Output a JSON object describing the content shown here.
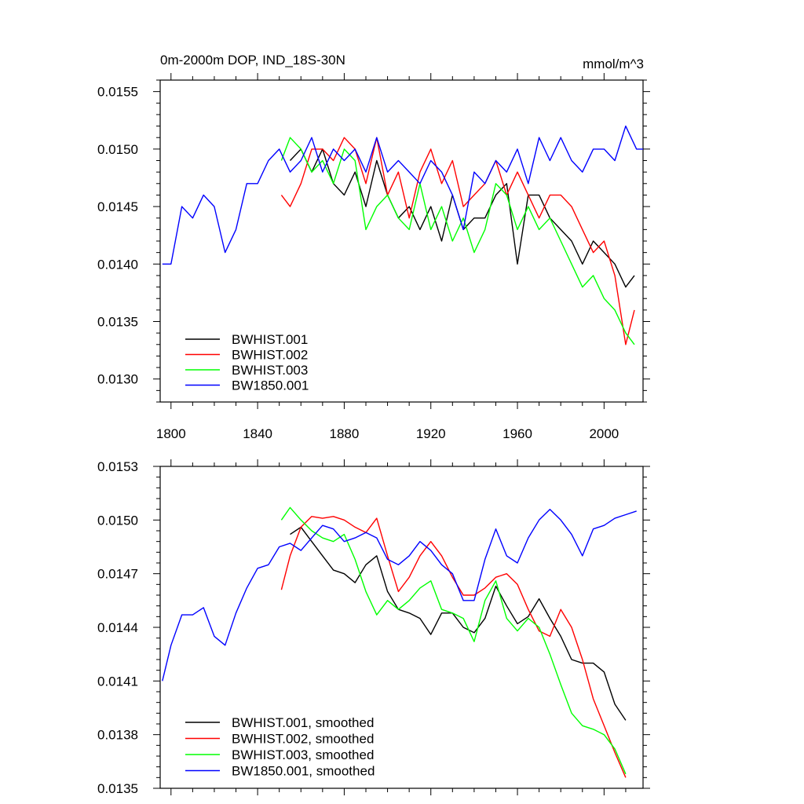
{
  "chart_data": [
    {
      "type": "line",
      "title": "0m-2000m DOP, IND_18S-30N",
      "units": "mmol/m^3",
      "xlim": [
        1795,
        2018
      ],
      "ylim": [
        0.0128,
        0.0156
      ],
      "xticks": [
        1800,
        1840,
        1880,
        1920,
        1960,
        2000
      ],
      "yticks": [
        0.013,
        0.0135,
        0.014,
        0.0145,
        0.015,
        0.0155
      ],
      "ytick_labels": [
        "0.0130",
        "0.0135",
        "0.0140",
        "0.0145",
        "0.0150",
        "0.0155"
      ],
      "legend_position": "bottom-left",
      "series": [
        {
          "name": "BWHIST.001",
          "color": "#000000",
          "x": [
            1855,
            1860,
            1865,
            1870,
            1875,
            1880,
            1885,
            1890,
            1895,
            1900,
            1905,
            1910,
            1915,
            1920,
            1925,
            1930,
            1935,
            1940,
            1945,
            1950,
            1955,
            1960,
            1965,
            1970,
            1975,
            1980,
            1985,
            1990,
            1995,
            2000,
            2005,
            2010,
            2014
          ],
          "y": [
            0.0149,
            0.015,
            0.0148,
            0.015,
            0.0147,
            0.0146,
            0.0148,
            0.0145,
            0.0149,
            0.0146,
            0.0144,
            0.0145,
            0.0143,
            0.0145,
            0.0142,
            0.0146,
            0.0143,
            0.0144,
            0.0144,
            0.0146,
            0.0147,
            0.014,
            0.0146,
            0.0146,
            0.0144,
            0.0143,
            0.0142,
            0.014,
            0.0142,
            0.0141,
            0.014,
            0.0138,
            0.0139
          ]
        },
        {
          "name": "BWHIST.002",
          "color": "#ff0000",
          "x": [
            1851,
            1855,
            1860,
            1865,
            1870,
            1875,
            1880,
            1885,
            1890,
            1895,
            1900,
            1905,
            1910,
            1915,
            1920,
            1925,
            1930,
            1935,
            1940,
            1945,
            1950,
            1955,
            1960,
            1965,
            1970,
            1975,
            1980,
            1985,
            1990,
            1995,
            2000,
            2005,
            2010,
            2014
          ],
          "y": [
            0.0146,
            0.0145,
            0.0147,
            0.015,
            0.015,
            0.0149,
            0.0151,
            0.015,
            0.0147,
            0.0151,
            0.0146,
            0.0148,
            0.0144,
            0.0148,
            0.015,
            0.0147,
            0.0149,
            0.0145,
            0.0146,
            0.0147,
            0.0149,
            0.0146,
            0.0148,
            0.0146,
            0.0144,
            0.0146,
            0.0146,
            0.0145,
            0.0143,
            0.0141,
            0.0142,
            0.0139,
            0.0133,
            0.0136
          ]
        },
        {
          "name": "BWHIST.003",
          "color": "#00ff00",
          "x": [
            1851,
            1855,
            1860,
            1865,
            1870,
            1875,
            1880,
            1885,
            1890,
            1895,
            1900,
            1905,
            1910,
            1915,
            1920,
            1925,
            1930,
            1935,
            1940,
            1945,
            1950,
            1955,
            1960,
            1965,
            1970,
            1975,
            1980,
            1985,
            1990,
            1995,
            2000,
            2005,
            2010,
            2014
          ],
          "y": [
            0.0149,
            0.0151,
            0.015,
            0.0148,
            0.0149,
            0.0147,
            0.015,
            0.0149,
            0.0143,
            0.0145,
            0.0146,
            0.0144,
            0.0143,
            0.0147,
            0.0143,
            0.0145,
            0.0142,
            0.0144,
            0.0141,
            0.0143,
            0.0147,
            0.0146,
            0.0143,
            0.0145,
            0.0143,
            0.0144,
            0.0142,
            0.014,
            0.0138,
            0.0139,
            0.0137,
            0.0136,
            0.0134,
            0.0133
          ]
        },
        {
          "name": "BW1850.001",
          "color": "#0000ff",
          "x": [
            1796,
            1800,
            1805,
            1810,
            1815,
            1820,
            1825,
            1830,
            1835,
            1840,
            1845,
            1850,
            1855,
            1860,
            1865,
            1870,
            1875,
            1880,
            1885,
            1890,
            1895,
            1900,
            1905,
            1910,
            1915,
            1920,
            1925,
            1930,
            1935,
            1940,
            1945,
            1950,
            1955,
            1960,
            1965,
            1970,
            1975,
            1980,
            1985,
            1990,
            1995,
            2000,
            2005,
            2010,
            2015,
            2018
          ],
          "y": [
            0.014,
            0.014,
            0.0145,
            0.0144,
            0.0146,
            0.0145,
            0.0141,
            0.0143,
            0.0147,
            0.0147,
            0.0149,
            0.015,
            0.0148,
            0.0149,
            0.0151,
            0.0148,
            0.015,
            0.0149,
            0.015,
            0.0148,
            0.0151,
            0.0148,
            0.0149,
            0.0148,
            0.0147,
            0.0149,
            0.0148,
            0.0146,
            0.0143,
            0.0148,
            0.0147,
            0.0149,
            0.0148,
            0.015,
            0.0147,
            0.0151,
            0.0149,
            0.0151,
            0.0149,
            0.0148,
            0.015,
            0.015,
            0.0149,
            0.0152,
            0.015,
            0.015
          ]
        }
      ]
    },
    {
      "type": "line",
      "xlim": [
        1795,
        2018
      ],
      "ylim": [
        0.0135,
        0.0153
      ],
      "xticks": [
        1800,
        1840,
        1880,
        1920,
        1960,
        2000
      ],
      "yticks": [
        0.0135,
        0.0138,
        0.0141,
        0.0144,
        0.0147,
        0.015,
        0.0153
      ],
      "ytick_labels": [
        "0.0135",
        "0.0138",
        "0.0141",
        "0.0144",
        "0.0147",
        "0.0150",
        "0.0153"
      ],
      "legend_position": "bottom-left",
      "series": [
        {
          "name": "BWHIST.001, smoothed",
          "color": "#000000",
          "x": [
            1855,
            1860,
            1865,
            1870,
            1875,
            1880,
            1885,
            1890,
            1895,
            1900,
            1905,
            1910,
            1915,
            1920,
            1925,
            1930,
            1935,
            1940,
            1945,
            1950,
            1955,
            1960,
            1965,
            1970,
            1975,
            1980,
            1985,
            1990,
            1995,
            2000,
            2005,
            2010
          ],
          "y": [
            0.01492,
            0.01496,
            0.01488,
            0.0148,
            0.01472,
            0.0147,
            0.01465,
            0.01475,
            0.0148,
            0.0146,
            0.0145,
            0.01448,
            0.01445,
            0.01436,
            0.01448,
            0.01448,
            0.0144,
            0.01437,
            0.01445,
            0.01463,
            0.01452,
            0.01442,
            0.01446,
            0.01456,
            0.01445,
            0.01435,
            0.01422,
            0.0142,
            0.0142,
            0.01415,
            0.01397,
            0.01388
          ]
        },
        {
          "name": "BWHIST.002, smoothed",
          "color": "#ff0000",
          "x": [
            1851,
            1855,
            1860,
            1865,
            1870,
            1875,
            1880,
            1885,
            1890,
            1895,
            1900,
            1905,
            1910,
            1915,
            1920,
            1925,
            1930,
            1935,
            1940,
            1945,
            1950,
            1955,
            1960,
            1965,
            1970,
            1975,
            1980,
            1985,
            1990,
            1995,
            2000,
            2005,
            2010
          ],
          "y": [
            0.01461,
            0.0148,
            0.01496,
            0.01502,
            0.01501,
            0.01502,
            0.015,
            0.01496,
            0.01493,
            0.01501,
            0.0148,
            0.0146,
            0.01468,
            0.0148,
            0.01488,
            0.0148,
            0.01468,
            0.01458,
            0.01458,
            0.01462,
            0.01468,
            0.0147,
            0.01464,
            0.0145,
            0.01438,
            0.01435,
            0.0145,
            0.0144,
            0.01422,
            0.014,
            0.01385,
            0.0137,
            0.01356
          ]
        },
        {
          "name": "BWHIST.003, smoothed",
          "color": "#00ff00",
          "x": [
            1851,
            1855,
            1860,
            1865,
            1870,
            1875,
            1880,
            1885,
            1890,
            1895,
            1900,
            1905,
            1910,
            1915,
            1920,
            1925,
            1930,
            1935,
            1940,
            1945,
            1950,
            1955,
            1960,
            1965,
            1970,
            1975,
            1980,
            1985,
            1990,
            1995,
            2000,
            2005,
            2010
          ],
          "y": [
            0.015,
            0.01507,
            0.015,
            0.01494,
            0.0149,
            0.01488,
            0.01492,
            0.01478,
            0.0146,
            0.01447,
            0.01455,
            0.0145,
            0.01455,
            0.01462,
            0.01466,
            0.0145,
            0.01448,
            0.01445,
            0.01432,
            0.01455,
            0.01466,
            0.01445,
            0.01438,
            0.01445,
            0.0144,
            0.01425,
            0.01408,
            0.01392,
            0.01385,
            0.01383,
            0.0138,
            0.01372,
            0.01358
          ]
        },
        {
          "name": "BW1850.001, smoothed",
          "color": "#0000ff",
          "x": [
            1796,
            1800,
            1805,
            1810,
            1815,
            1820,
            1825,
            1830,
            1835,
            1840,
            1845,
            1850,
            1855,
            1860,
            1865,
            1870,
            1875,
            1880,
            1885,
            1890,
            1895,
            1900,
            1905,
            1910,
            1915,
            1920,
            1925,
            1930,
            1935,
            1940,
            1945,
            1950,
            1955,
            1960,
            1965,
            1970,
            1975,
            1980,
            1985,
            1990,
            1995,
            2000,
            2005,
            2010,
            2015
          ],
          "y": [
            0.0141,
            0.0143,
            0.01447,
            0.01447,
            0.01451,
            0.01435,
            0.0143,
            0.01448,
            0.01462,
            0.01473,
            0.01475,
            0.01485,
            0.01487,
            0.01483,
            0.0149,
            0.01497,
            0.01495,
            0.01488,
            0.0149,
            0.01493,
            0.0149,
            0.01478,
            0.01475,
            0.0148,
            0.01488,
            0.01483,
            0.01475,
            0.0147,
            0.01455,
            0.01455,
            0.01478,
            0.01495,
            0.0148,
            0.01476,
            0.0149,
            0.015,
            0.01506,
            0.015,
            0.01492,
            0.0148,
            0.01495,
            0.01497,
            0.01501,
            0.01503,
            0.01505
          ]
        }
      ]
    }
  ]
}
